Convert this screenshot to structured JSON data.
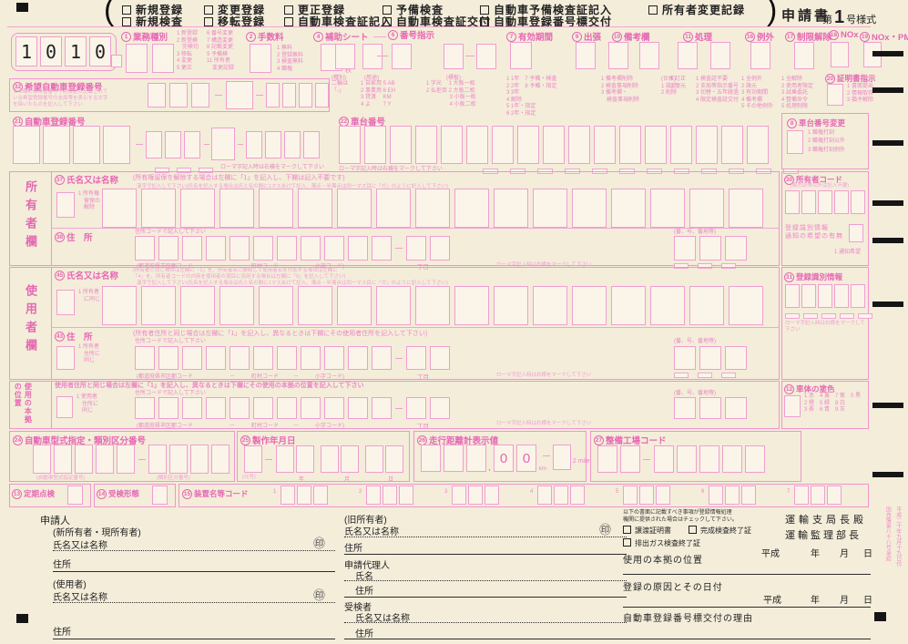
{
  "top": {
    "row1": [
      "新規登録",
      "変更登録",
      "更正登録",
      "予備検査",
      "自動車予備検査証記入",
      "所有者変更記録"
    ],
    "row2": [
      "新規検査",
      "移転登録",
      "自動車検査証記入",
      "自動車検査証交付",
      "自動車登録番号標交付"
    ],
    "title": "申請書",
    "form_pre": "第",
    "form_num": "1",
    "form_suf": "号様式"
  },
  "sheet_code": [
    "1",
    "0",
    "1",
    "0"
  ],
  "hdr": {
    "gyomu_num": "1",
    "gyomu_label": "業務種別",
    "gyomu_leg1": "1 新登録\n2 新登検\n　完検切\n3 移転\n4 変更\n5 更正",
    "gyomu_leg2": "6 番号変更\n7 構造変更\n8 記載変更\n9 予備検\n11 所有者\n　変更記録",
    "tesuryo_num": "2",
    "tesuryo_label": "手数料",
    "tesuryo_leg": "1 無料\n2 登録無料\n3 検査無料\n4 職権",
    "hojo_num": "4",
    "hojo_label": "補助シート",
    "hojo_unit": "枚",
    "bango_num": "6",
    "bango_label": "番号指示",
    "bango_cap1": "(種別)",
    "bango_cap2": "(用途)",
    "bango_cap3": "(標板)",
    "bango_leg1": "二輪は\n「-」",
    "bango_leg2": "1 自家用 5 AB\n2 事業用 6 EH\n3 貸渡　 KM\n4 よ　　 7 Y",
    "bango_leg3": "1 字光　 1 大板一枚\n2 払拒否 2 大板二枚\n　　　　 3 小板一枚\n　　　　 4 小板二枚",
    "yuko_num": "7",
    "yuko_label": "有効期間",
    "yuko_leg": "1 1年　7 予備・検査\n2 2年　8 予備・指定\n3 3年\n4 解除\n5 1年・指定\n6 2年・指定",
    "shutcho_num": "9",
    "shutcho_label": "出張",
    "biko_num": "10",
    "biko_label": "備考欄",
    "biko_leg1": "1 備考欄削除\n2 検査事項削除\n3 備考欄・\n　検査事項削除",
    "biko_leg2": "(台帳)\n1 設定\n2 削除",
    "shori_num": "11",
    "shori_label": "処理",
    "shori_leg1": "1 訂正\n2 復元",
    "shori_leg2": "1 検査証不要\n2 支局等指示番号\n3 切替・五年経過\n4 限定検査証交付",
    "reigai_num": "16",
    "reigai_label": "例外",
    "reigai_leg": "1 全例外\n2 諸元\n3 有効期間\n4 備考欄\n5 その他例外",
    "kaijo_num": "17",
    "kaijo_label": "制限解除",
    "kaijo_leg": "1 全解除\n2 使用者限定\n3 試乗委託\n4 整備命令\n5 処理制限",
    "nox_num": "18",
    "nox_label": "NOx",
    "noxpm_num": "19",
    "noxpm_label": "NOx・PM",
    "shomei_num": "20",
    "shomei_label": "証明書指示",
    "shomei_leg": "1 書面提出\n2 情報取得\n3 猶予解除"
  },
  "kibo": {
    "num": "32",
    "label": "希望自動車登録番号",
    "note": "この欄には希望番号予約済証に記載されて\nいる希望登録番号の支局等を表示する文字\nを除いたものを記入して下さい"
  },
  "rego": {
    "num": "21",
    "label": "自動車登録番号",
    "mark_note": "ローマ字記入時は右横をマークして下さい"
  },
  "chassis": {
    "num": "22",
    "label": "車台番号",
    "mark_note": "ローマ字記入時は右横をマークして下さい"
  },
  "chg": {
    "num": "8",
    "label": "車台番号変更",
    "leg": "1 職権打刻\n2 職権打刻以外\n3 職権打刻例外"
  },
  "owner": {
    "side": "所有者欄",
    "name_num": "37",
    "name_label": "氏名又は名称",
    "name_note": "(所有権留保を解除する場合は左欄に「1」を記入し、下欄は記入不要です)",
    "kanji_note": "漢字で記入して下さい(氏名を記入する場合は氏と名の間に1マスあけて記入、濁点・半濁点は同一マス目に「ガ」のように記入して下さい)",
    "hold": "1 所有権\n　留保の\n　解除",
    "addr_num": "38",
    "addr_label": "住　所",
    "code_note": "住所コードで記入して下さい",
    "cap_pref": "(都道府県市区郡コード",
    "cap_dash": "－",
    "cap_town": "町村コード",
    "cap_koaza": "小字コード)",
    "cap_chome": "丁目",
    "cap_banchi": "(番、号、番地等)",
    "mark_note": "ローマ字記入時は右横をマークして下さい"
  },
  "ocode": {
    "num": "30",
    "label": "所有者コード",
    "note": "(販売店等以外は記入不要)"
  },
  "wish": {
    "line1": "登録識別情報\n通知の希望の有無",
    "opt": "1 通知希望"
  },
  "sikibetsu": {
    "num": "31",
    "label": "登録識別情報",
    "mark_note": "ローマ字記入時は右横をマークして下さい"
  },
  "user": {
    "side": "使用者欄",
    "name_num": "45",
    "name_label": "氏名又は名称",
    "name_note": "(所有者と同じ場合は左欄に「1」を、所有者名に継続して使用者名を付加する場合は左欄に\n「4」を、所有者コードの内容を使用者の項目に流用する場合は左欄に「9」を記入して下さい)",
    "kanji_note": "漢字で記入して下さい(氏名を記入する場合は氏と名の間に1マスあけて記入、濁点・半濁点は同一マス目に「ガ」のように記入して下さい)",
    "same": "1 所有者\n　に同じ",
    "addr_num": "43",
    "addr_label": "住　所",
    "addr_note": "(所有者住所と同じ場合は左欄に「1」を記入し、異なるときは下欄にその使用者住所を記入して下さい)",
    "same_addr": "1 所有者\n　住所に\n　同じ",
    "code_note": "住所コードで記入して下さい",
    "cap_pref": "(都道府県市区郡コード",
    "cap_dash": "－",
    "cap_town": "町村コード",
    "cap_koaza": "小字コード)",
    "cap_chome": "丁目",
    "cap_banchi": "(番、号、番地等)",
    "mark_note": "ローマ字記入時は右横をマークして下さい"
  },
  "honkyo": {
    "side_num": "47",
    "side": "使用の本拠の位置",
    "note": "使用者住所と同じ場合は左欄に「1」を記入し、異なるときは下欄にその使用の本拠の位置を記入して下さい",
    "same": "1 使用者\n　住所に\n　同じ",
    "code_note": "住所コードで記入して下さい",
    "cap_pref": "(都道府県市区郡コード",
    "cap_dash": "－",
    "cap_town": "町村コード",
    "cap_koaza": "小字コード)",
    "cap_chome": "丁目",
    "cap_banchi": "(番、号、番地等)",
    "mark_note": "ローマ字記入時は右横をマークして下さい"
  },
  "color": {
    "num": "12",
    "label": "車体の塗色",
    "leg": "1 赤　4 黄　7 紫　0 黒\n2 橙　5 緑　8 白\n3 茶　6 青　9 灰"
  },
  "type": {
    "num": "24",
    "label": "自動車型式指定・類別区分番号",
    "cap1": "(自動車型式指定番号)",
    "cap2": "(類別区分番号)"
  },
  "made": {
    "num": "25",
    "label": "製作年月日",
    "cap_era": "(元号)",
    "cap_y": "年",
    "cap_m": "月",
    "cap_d": "日"
  },
  "odo": {
    "num": "26",
    "label": "走行距離計表示値",
    "comma": ",",
    "zero": "0",
    "km": "km",
    "mile": "2  mile"
  },
  "factory": {
    "num": "27",
    "label": "整備工場コード"
  },
  "teiki": {
    "num": "13",
    "label": "定期点検"
  },
  "jukken": {
    "num": "14",
    "label": "受検形態"
  },
  "sochi": {
    "num": "15",
    "label": "装置名等コード",
    "nums": [
      "1",
      "2",
      "3",
      "4",
      "5",
      "6",
      "7"
    ]
  },
  "bottom": {
    "applicant": "申請人",
    "new_owner": "(新所有者・現所有者)",
    "name": "氏名又は名称",
    "addr": "住所",
    "user_p": "(使用者)",
    "old_owner": "(旧所有者)",
    "agent": "申請代理人",
    "agent_name": "氏名",
    "examinee": "受検者",
    "seal": "㊞",
    "note": "以下の書面に記載すべき事項が登録情報処理\n機関に提供された場合はチェックして下さい。",
    "cb1": "譲渡証明書",
    "cb2": "完成検査終了証",
    "cb3": "排出ガス検査終了証",
    "honkyo": "使用の本拠の位置",
    "cause": "登録の原因とその日付",
    "heisei": "平成",
    "y": "年",
    "m": "月",
    "d": "日",
    "plate_reason": "自動車登録番号標交付の理由",
    "office1": "運輸支局長殿",
    "office2": "運輸監理部長"
  },
  "approval": "平成二十年九月十九日付\n国自情第八十八号承認"
}
